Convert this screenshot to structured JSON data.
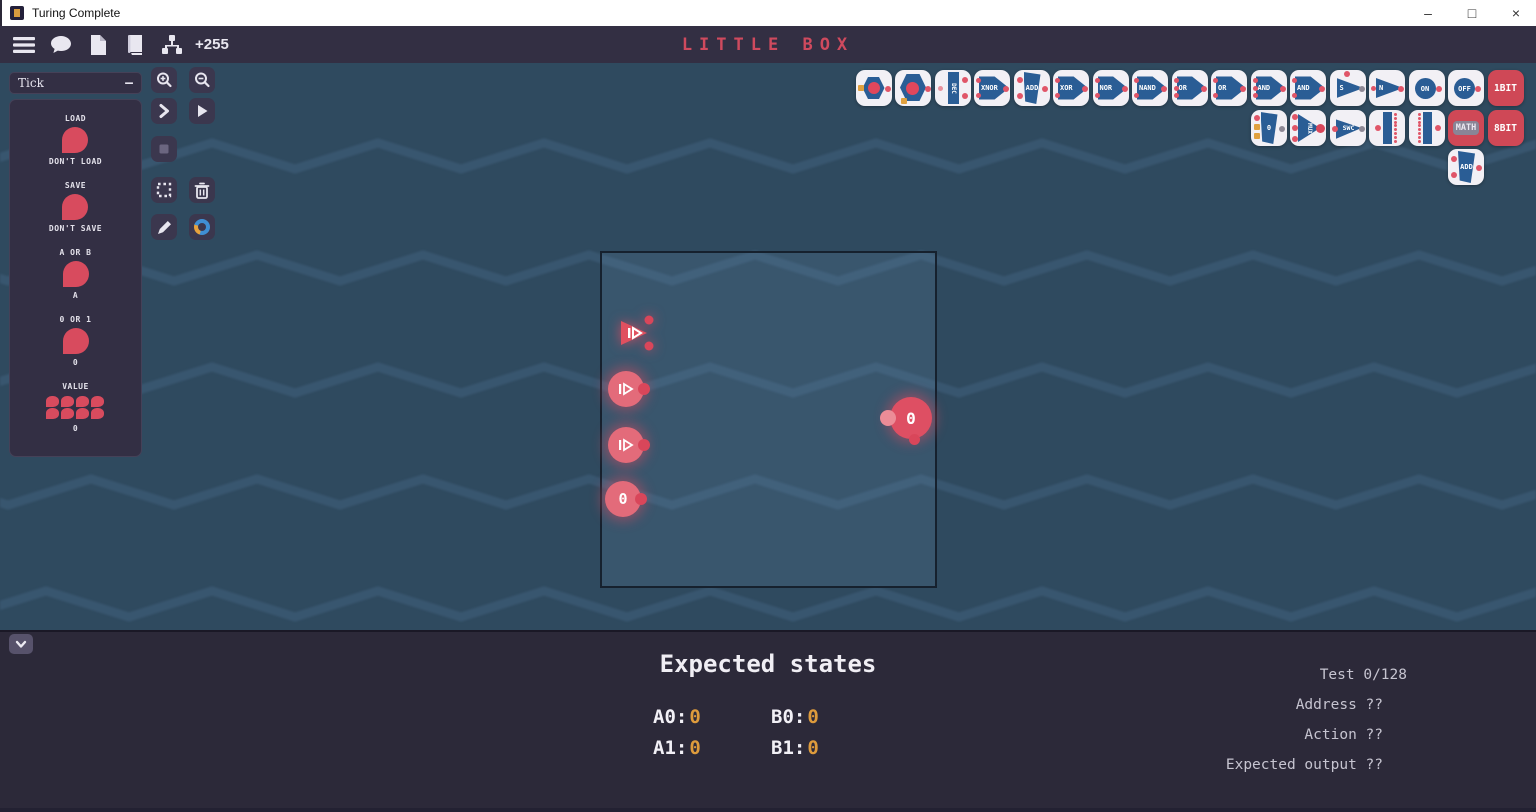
{
  "window": {
    "title": "Turing Complete",
    "minimize": "–",
    "maximize": "□",
    "close": "×"
  },
  "toolbar": {
    "score": "+255",
    "level_title": "LITTLE BOX",
    "icons": [
      "menu-icon",
      "chat-icon",
      "file-icon",
      "book-icon",
      "hierarchy-icon"
    ]
  },
  "colors": {
    "accent_red": "#d54558",
    "value_orange": "#de9b3c",
    "title_red": "#cf4a5e",
    "gate_blue": "#2a5d95"
  },
  "tick_panel": {
    "title": "Tick",
    "collapse_label": "–",
    "entries": [
      {
        "top": "LOAD",
        "bottom": "DON'T LOAD",
        "kind": "pin"
      },
      {
        "top": "SAVE",
        "bottom": "DON'T SAVE",
        "kind": "pin"
      },
      {
        "top": "A OR B",
        "bottom": "A",
        "kind": "pin"
      },
      {
        "top": "0 OR 1",
        "bottom": "0",
        "kind": "pin"
      },
      {
        "top": "VALUE",
        "bottom": "0",
        "kind": "pin-grid"
      }
    ]
  },
  "tools": [
    {
      "name": "zoom-in-button",
      "icon": "zoom-in"
    },
    {
      "name": "zoom-out-button",
      "icon": "zoom-out"
    },
    {
      "name": "step-button",
      "icon": "chevron-right"
    },
    {
      "name": "play-button",
      "icon": "play"
    },
    {
      "name": "stop-button",
      "icon": "stop"
    },
    {
      "name": "select-button",
      "icon": "selection"
    },
    {
      "name": "delete-button",
      "icon": "trash"
    },
    {
      "name": "edit-button",
      "icon": "pencil"
    },
    {
      "name": "color-wheel-button",
      "icon": "color-wheel"
    }
  ],
  "palette": {
    "row1": [
      {
        "name": "register-component",
        "label": "",
        "kind": "reg"
      },
      {
        "name": "counter-component",
        "label": "",
        "kind": "counter"
      },
      {
        "name": "decoder-component",
        "label": "DEC",
        "kind": "ribbon-v"
      },
      {
        "name": "xnor-gate",
        "label": "XNOR",
        "kind": "gate"
      },
      {
        "name": "adder-component",
        "label": "ADD",
        "kind": "ribbon"
      },
      {
        "name": "xor-gate",
        "label": "XOR",
        "kind": "gate"
      },
      {
        "name": "nor-gate",
        "label": "NOR",
        "kind": "gate"
      },
      {
        "name": "nand-gate",
        "label": "NAND",
        "kind": "gate"
      },
      {
        "name": "or3-gate",
        "label": "OR",
        "kind": "gate3"
      },
      {
        "name": "or-gate",
        "label": "OR",
        "kind": "gate"
      },
      {
        "name": "and3-gate",
        "label": "AND",
        "kind": "gate3"
      },
      {
        "name": "and-gate",
        "label": "AND",
        "kind": "gate"
      },
      {
        "name": "switch-gate",
        "label": "S",
        "kind": "tri-s"
      },
      {
        "name": "not-gate",
        "label": "N",
        "kind": "tri"
      },
      {
        "name": "on-constant",
        "label": "ON",
        "kind": "circle"
      },
      {
        "name": "off-constant",
        "label": "OFF",
        "kind": "circle"
      },
      {
        "name": "tab-1bit",
        "label": "1BIT",
        "kind": "redbtn"
      }
    ],
    "row2": [
      {
        "name": "byte-constant",
        "label": "0",
        "kind": "ribbon2"
      },
      {
        "name": "mux-component",
        "label": "MUX",
        "kind": "mux"
      },
      {
        "name": "switch-component",
        "label": "SWC",
        "kind": "swc"
      },
      {
        "name": "byte-splitter",
        "label": "",
        "kind": "split"
      },
      {
        "name": "byte-maker",
        "label": "",
        "kind": "make"
      },
      {
        "name": "tab-math",
        "label": "MATH",
        "kind": "math"
      },
      {
        "name": "tab-8bit",
        "label": "8BIT",
        "kind": "redbtn"
      }
    ],
    "row3": [
      {
        "name": "byte-adder",
        "label": "ADD",
        "kind": "ribbon"
      }
    ]
  },
  "canvas": {
    "nodes": [
      {
        "name": "tick-input-node",
        "kind": "arrow",
        "value": ""
      },
      {
        "name": "bit-input-node-1",
        "kind": "play",
        "value": ""
      },
      {
        "name": "bit-input-node-2",
        "kind": "play",
        "value": ""
      },
      {
        "name": "byte-input-node",
        "kind": "value",
        "value": "0"
      },
      {
        "name": "byte-output-node",
        "kind": "output",
        "value": "0"
      }
    ]
  },
  "bottom": {
    "title": "Expected states",
    "signals": [
      {
        "label": "A0:",
        "value": "0"
      },
      {
        "label": "B0:",
        "value": "0"
      },
      {
        "label": "A1:",
        "value": "0"
      },
      {
        "label": "B1:",
        "value": "0"
      }
    ],
    "test_info": [
      "Test 0/128",
      "Address ??",
      "Action ??",
      "Expected output ??"
    ]
  }
}
